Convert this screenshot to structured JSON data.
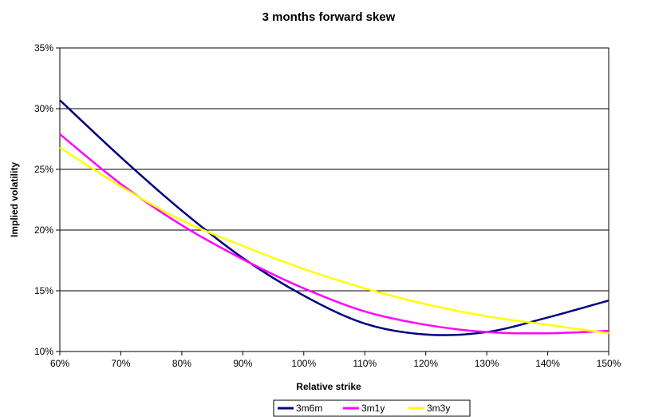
{
  "chart_data": {
    "type": "line",
    "title": "3 months forward skew",
    "xlabel": "Relative strike",
    "ylabel": "Implied volatility",
    "x": [
      60,
      70,
      80,
      90,
      100,
      110,
      120,
      130,
      140,
      150
    ],
    "x_tick_labels": [
      "60%",
      "70%",
      "80%",
      "90%",
      "100%",
      "110%",
      "120%",
      "130%",
      "140%",
      "150%"
    ],
    "y_tick_labels": [
      "10%",
      "15%",
      "20%",
      "25%",
      "30%",
      "35%"
    ],
    "y_ticks": [
      10,
      15,
      20,
      25,
      30,
      35
    ],
    "xlim": [
      60,
      150
    ],
    "ylim": [
      10,
      35
    ],
    "grid": "horizontal",
    "legend_position": "bottom",
    "series": [
      {
        "name": "3m6m",
        "color": "#000080",
        "values": [
          30.7,
          26.0,
          21.6,
          17.7,
          14.6,
          12.3,
          11.4,
          11.6,
          12.8,
          14.2
        ]
      },
      {
        "name": "3m1y",
        "color": "#ff00ff",
        "values": [
          27.9,
          23.8,
          20.4,
          17.6,
          15.2,
          13.3,
          12.2,
          11.6,
          11.5,
          11.7
        ]
      },
      {
        "name": "3m3y",
        "color": "#ffff00",
        "values": [
          26.8,
          23.6,
          20.8,
          18.7,
          16.8,
          15.2,
          13.9,
          12.9,
          12.2,
          11.5
        ]
      }
    ]
  }
}
